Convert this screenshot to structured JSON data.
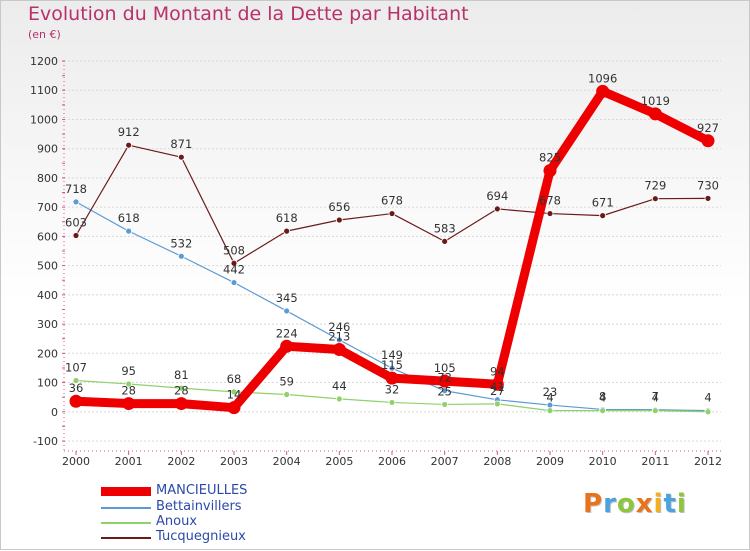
{
  "title": "Evolution du Montant de la Dette par Habitant",
  "unit_label": "(en €)",
  "logo_text": "Proxiti",
  "logo_colors": [
    "#e8731a",
    "#4aa3df",
    "#8cc63f",
    "#e8731a",
    "#f0b020",
    "#4aa3df",
    "#8cc63f"
  ],
  "chart_data": {
    "type": "line",
    "x": [
      2000,
      2001,
      2002,
      2003,
      2004,
      2005,
      2006,
      2007,
      2008,
      2009,
      2010,
      2011,
      2012
    ],
    "ylim": [
      -100,
      1200
    ],
    "yticks": [
      -100,
      0,
      100,
      200,
      300,
      400,
      500,
      600,
      700,
      800,
      900,
      1000,
      1100,
      1200
    ],
    "grid": "horizontal",
    "legend_position": "bottom-left",
    "series": [
      {
        "name": "MANCIEULLES",
        "color": "#ee0000",
        "values": [
          36,
          28,
          28,
          14,
          224,
          213,
          115,
          105,
          94,
          825,
          1096,
          1019,
          927
        ],
        "labels": [
          "36",
          "28",
          "28",
          "14",
          "224",
          "213",
          "115",
          "105",
          "94",
          "825",
          "1096",
          "1019",
          "927"
        ]
      },
      {
        "name": "Bettainvillers",
        "color": "#5b9bd5",
        "values": [
          718,
          618,
          532,
          442,
          345,
          246,
          149,
          72,
          41,
          23,
          8,
          7,
          4
        ],
        "labels": [
          "718",
          "618",
          "532",
          "442",
          "345",
          "246",
          "149",
          "72",
          "41",
          "23",
          "8",
          "7",
          "4"
        ]
      },
      {
        "name": "Anoux",
        "color": "#8fd16a",
        "values": [
          107,
          95,
          81,
          68,
          59,
          44,
          32,
          25,
          27,
          4,
          4,
          4,
          0
        ],
        "labels": [
          "107",
          "95",
          "81",
          "68",
          "59",
          "44",
          "32",
          "25",
          "27",
          "4",
          "4",
          "4",
          ""
        ]
      },
      {
        "name": "Tucquegnieux",
        "color": "#6b1a1a",
        "values": [
          603,
          912,
          871,
          508,
          618,
          656,
          678,
          583,
          694,
          678,
          671,
          729,
          730
        ],
        "labels": [
          "603",
          "912",
          "871",
          "508",
          "618",
          "656",
          "678",
          "583",
          "694",
          "678",
          "671",
          "729",
          "730"
        ]
      }
    ]
  }
}
